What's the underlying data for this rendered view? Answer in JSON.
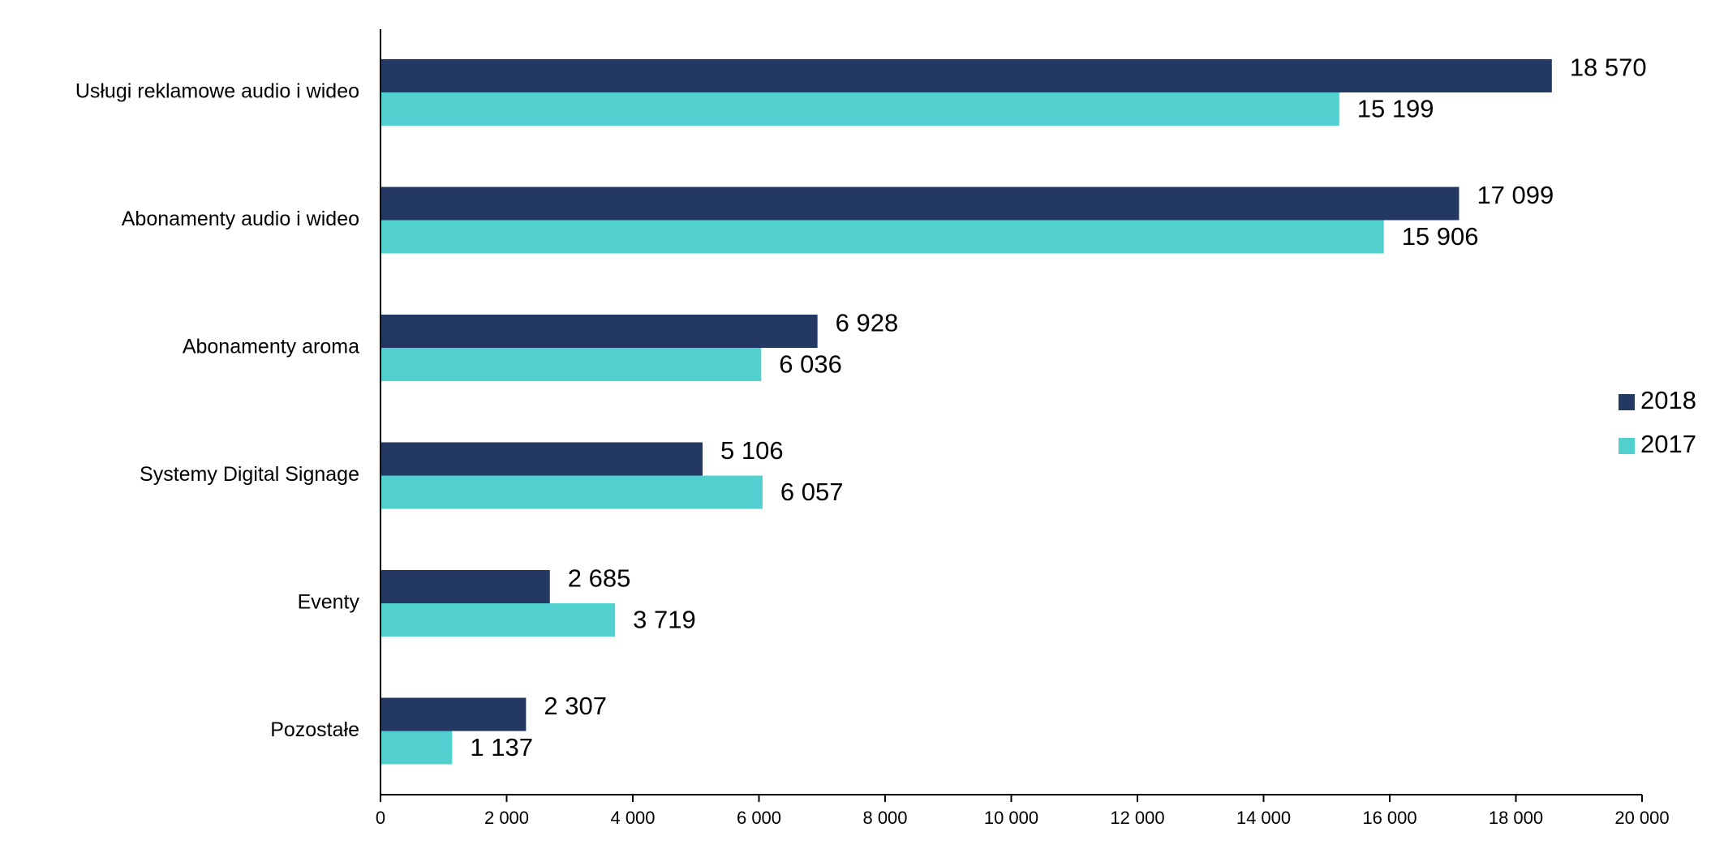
{
  "chart_data": {
    "type": "bar",
    "orientation": "horizontal",
    "categories": [
      "Usługi reklamowe audio i wideo",
      "Abonamenty audio i wideo",
      "Abonamenty aroma",
      "Systemy Digital Signage",
      "Eventy",
      "Pozostałe"
    ],
    "series": [
      {
        "name": "2018",
        "color": "#233862",
        "values": [
          18570,
          17099,
          6928,
          5106,
          2685,
          2307
        ],
        "labels": [
          "18 570",
          "17 099",
          "6 928",
          "5 106",
          "2 685",
          "2 307"
        ]
      },
      {
        "name": "2017",
        "color": "#52CFCF",
        "values": [
          15199,
          15906,
          6036,
          6057,
          3719,
          1137
        ],
        "labels": [
          "15 199",
          "15 906",
          "6 036",
          "6 057",
          "3 719",
          "1 137"
        ]
      }
    ],
    "xlim": [
      0,
      20000
    ],
    "xticks": [
      0,
      2000,
      4000,
      6000,
      8000,
      10000,
      12000,
      14000,
      16000,
      18000,
      20000
    ],
    "xtick_labels": [
      "0",
      "2 000",
      "4 000",
      "6 000",
      "8 000",
      "10 000",
      "12 000",
      "14 000",
      "16 000",
      "18 000",
      "20 000"
    ],
    "grid": false,
    "legend_position": "right",
    "axis_color": "#000000",
    "title": "",
    "xlabel": "",
    "ylabel": ""
  }
}
